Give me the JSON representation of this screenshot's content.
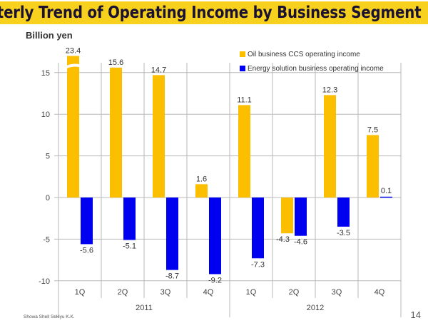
{
  "slide": {
    "title": "Quarterly Trend of Operating Income by Business Segment",
    "unit_label": "Billion yen",
    "footer_company": "Showa Shell Sekiyu K.K.",
    "page_number": "14"
  },
  "colors": {
    "title_bar": "#f7d11e",
    "oil": "#fcbf00",
    "energy": "#0000f0",
    "grid": "#b8b8b8"
  },
  "chart_data": {
    "type": "bar",
    "title": "Quarterly Trend of Operating Income by Business Segment",
    "ylabel": "Billion yen",
    "xlabel": "",
    "ylim": [
      -10,
      17
    ],
    "yticks": [
      15,
      10,
      5,
      0,
      -5,
      -10
    ],
    "grid": true,
    "legend_position": "top-right",
    "categories": [
      "1Q",
      "2Q",
      "3Q",
      "4Q",
      "1Q",
      "2Q",
      "3Q",
      "4Q"
    ],
    "groups": [
      {
        "label": "2011",
        "span": [
          0,
          3
        ]
      },
      {
        "label": "2012",
        "span": [
          4,
          7
        ]
      }
    ],
    "series": [
      {
        "name": "Oil business CCS operating income",
        "values": [
          23.4,
          15.6,
          14.7,
          1.6,
          11.1,
          -4.3,
          12.3,
          7.5
        ],
        "labels": [
          "23.4",
          "15.6",
          "14.7",
          "1.6",
          "11.1",
          "-4.3",
          "12.3",
          "7.5"
        ],
        "axis_break": [
          true,
          false,
          false,
          false,
          false,
          false,
          false,
          false
        ]
      },
      {
        "name": "Energy solution business operating income",
        "values": [
          -5.6,
          -5.1,
          -8.7,
          -9.2,
          -7.3,
          -4.6,
          -3.5,
          0.1
        ],
        "labels": [
          "-5.6",
          "-5.1",
          "-8.7",
          "-9.2",
          "-7.3",
          "-4.6",
          "-3.5",
          "0.1"
        ]
      }
    ]
  }
}
